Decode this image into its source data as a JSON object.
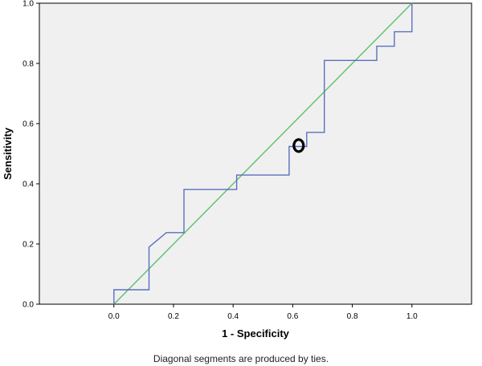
{
  "chart_data": {
    "type": "line",
    "title": "",
    "xlabel": "1 - Specificity",
    "ylabel": "Sensitivity",
    "xlim": [
      -0.25,
      1.2
    ],
    "ylim": [
      0.0,
      1.0
    ],
    "x_ticks": [
      "0.0",
      "0.2",
      "0.4",
      "0.6",
      "0.8",
      "1.0"
    ],
    "y_ticks": [
      "0.0",
      "0.2",
      "0.4",
      "0.6",
      "0.8",
      "1.0"
    ],
    "grid": false,
    "legend": "none",
    "footnote": "Diagonal segments are produced by ties.",
    "colors": {
      "roc": "#5a6fbf",
      "reference": "#5cc16a",
      "plot_bg": "#f0f0f0",
      "marker": "#000000"
    },
    "series": [
      {
        "x": [
          0.0,
          0.0,
          0.118,
          0.118,
          0.176,
          0.235,
          0.235,
          0.412,
          0.412,
          0.588,
          0.588,
          0.647,
          0.647,
          0.706,
          0.706,
          0.882,
          0.882,
          0.941,
          0.941,
          1.0,
          1.0
        ],
        "y": [
          0.0,
          0.048,
          0.048,
          0.19,
          0.238,
          0.238,
          0.381,
          0.381,
          0.429,
          0.429,
          0.524,
          0.524,
          0.571,
          0.571,
          0.81,
          0.81,
          0.857,
          0.857,
          0.905,
          0.905,
          1.0
        ]
      },
      {
        "x": [
          0.0,
          1.0
        ],
        "y": [
          0.0,
          1.0
        ]
      }
    ],
    "annotations": [
      {
        "kind": "circle-marker",
        "x": 0.62,
        "y": 0.527
      }
    ]
  }
}
